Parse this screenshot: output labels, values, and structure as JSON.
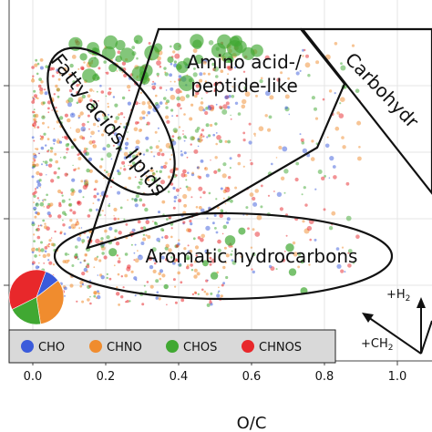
{
  "chart_data": {
    "type": "scatter",
    "title": "",
    "xlabel": "O/C",
    "ylabel": "",
    "xlim": [
      -0.05,
      1.1
    ],
    "ylim": [
      0,
      2.5
    ],
    "x_ticks": [
      {
        "value": 0.0,
        "label": "0.0"
      },
      {
        "value": 0.2,
        "label": "0.2"
      },
      {
        "value": 0.4,
        "label": "0.4"
      },
      {
        "value": 0.6,
        "label": "0.6"
      },
      {
        "value": 0.8,
        "label": "0.8"
      },
      {
        "value": 1.0,
        "label": "1.0"
      }
    ],
    "y_ticks": [
      0.5,
      1.0,
      1.5,
      2.0
    ],
    "series": [
      {
        "name": "CHO",
        "color": "#3b5bdb"
      },
      {
        "name": "CHNO",
        "color": "#f08c2e"
      },
      {
        "name": "CHOS",
        "color": "#40a832"
      },
      {
        "name": "CHNOS",
        "color": "#e8282b"
      }
    ],
    "pie": [
      {
        "series": "CHO",
        "fraction": 0.09
      },
      {
        "series": "CHNO",
        "fraction": 0.33
      },
      {
        "series": "CHOS",
        "fraction": 0.2
      },
      {
        "series": "CHNOS",
        "fraction": 0.38
      }
    ],
    "regions": [
      {
        "label_lines": [
          "Fatty acids, lipids"
        ]
      },
      {
        "label_lines": [
          "Amino acid-/",
          "peptide-like"
        ]
      },
      {
        "label_lines": [
          "Carbohydr"
        ]
      },
      {
        "label_lines": [
          "Aromatic hydrocarbons"
        ]
      }
    ],
    "reaction_vectors": [
      {
        "label": "+H",
        "subscript": "2"
      },
      {
        "label": "+CH",
        "subscript": "2"
      }
    ],
    "legend_position": "bottom-left"
  }
}
